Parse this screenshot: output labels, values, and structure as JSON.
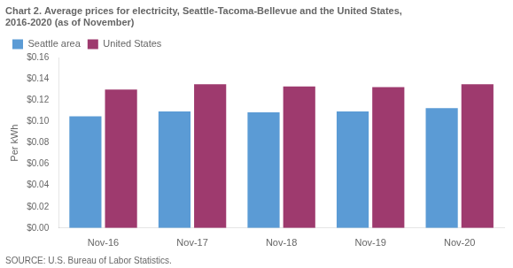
{
  "chart_data": {
    "type": "bar",
    "title": [
      "Chart 2. Average prices for electricity, Seattle-Tacoma-Bellevue and the United States,",
      "2016-2020 (as of November)"
    ],
    "y_label": "Per kWh",
    "source": "SOURCE: U.S. Bureau of Labor Statistics.",
    "categories": [
      "Nov-16",
      "Nov-17",
      "Nov-18",
      "Nov-19",
      "Nov-20"
    ],
    "series": [
      {
        "name": "Seattle area",
        "color": "#5B9BD5",
        "values": [
          0.1051,
          0.1097,
          0.1088,
          0.1097,
          0.1127
        ]
      },
      {
        "name": "United States",
        "color": "#9E3A6E",
        "values": [
          0.1302,
          0.1352,
          0.133,
          0.1325,
          0.1352
        ]
      }
    ],
    "ylim": [
      0,
      0.16
    ],
    "yticks": [
      {
        "value": 0.0,
        "label": "$0.00"
      },
      {
        "value": 0.02,
        "label": "$0.02"
      },
      {
        "value": 0.04,
        "label": "$0.04"
      },
      {
        "value": 0.06,
        "label": "$0.06"
      },
      {
        "value": 0.08,
        "label": "$0.08"
      },
      {
        "value": 0.1,
        "label": "$0.10"
      },
      {
        "value": 0.12,
        "label": "$0.12"
      },
      {
        "value": 0.14,
        "label": "$0.14"
      },
      {
        "value": 0.16,
        "label": "$0.16"
      }
    ],
    "grid": false,
    "legend": "upper left"
  }
}
